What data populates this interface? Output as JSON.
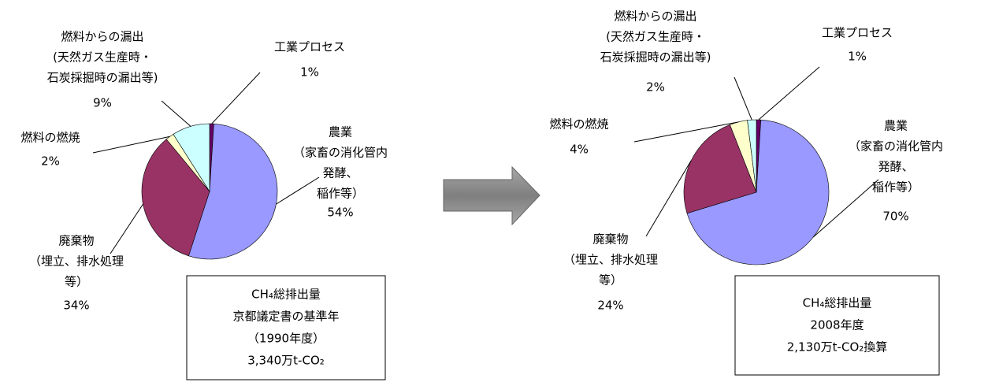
{
  "chart_data": [
    {
      "type": "pie",
      "categories": [
        [
          "工業プロセス"
        ],
        [
          "農業",
          "（家畜の消化管内",
          "発酵、",
          "稲作等）"
        ],
        [
          "廃棄物",
          "（埋立、排水処理",
          "等）"
        ],
        [
          "燃料の燃焼"
        ],
        [
          "燃料からの漏出",
          "(天然ガス生産時・",
          "石炭採掘時の漏出等)"
        ]
      ],
      "values": [
        1,
        54,
        34,
        2,
        9
      ],
      "value_labels": [
        "1%",
        "54%",
        "34%",
        "2%",
        "9%"
      ],
      "colors": [
        "#660066",
        "#9999ff",
        "#993366",
        "#ffffcc",
        "#ccffff"
      ],
      "annotations": [
        "CH₄総排出量",
        "京都議定書の基準年",
        "（1990年度）",
        "3,340万t-CO₂"
      ]
    },
    {
      "type": "pie",
      "categories": [
        [
          "工業プロセス"
        ],
        [
          "農業",
          "（家畜の消化管内",
          "発酵、",
          "稲作等）"
        ],
        [
          "廃棄物",
          "（埋立、排水処理",
          "等）"
        ],
        [
          "燃料の燃焼"
        ],
        [
          "燃料からの漏出",
          "(天然ガス生産時・",
          "石炭採掘時の漏出等)"
        ]
      ],
      "values": [
        1,
        70,
        24,
        4,
        2
      ],
      "value_labels": [
        "1%",
        "70%",
        "24%",
        "4%",
        "2%"
      ],
      "colors": [
        "#660066",
        "#9999ff",
        "#993366",
        "#ffffcc",
        "#ccffff"
      ],
      "annotations": [
        "CH₄総排出量",
        "2008年度",
        "2,130万t-CO₂換算"
      ]
    }
  ]
}
